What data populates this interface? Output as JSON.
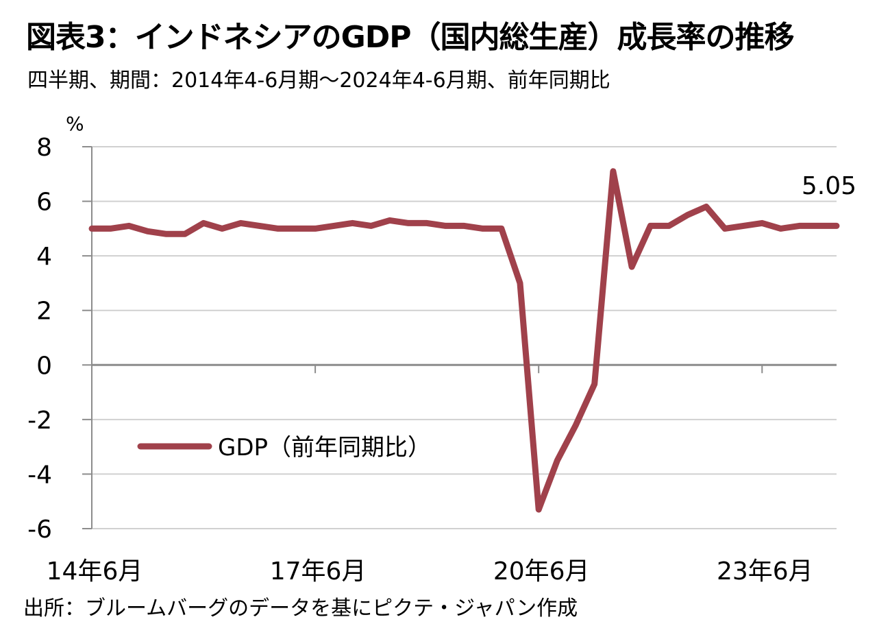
{
  "chart_data": {
    "type": "line",
    "title": "図表3：インドネシアのGDP（国内総生産）成長率の推移",
    "subtitle": "四半期、期間：2014年4-6月期～2024年4-6月期、前年同期比",
    "ylabel": "%",
    "ylim": [
      -6,
      8
    ],
    "yticks": [
      "8",
      "6",
      "4",
      "2",
      "0",
      "-2",
      "-4",
      "-6"
    ],
    "ytick_values": [
      8,
      6,
      4,
      2,
      0,
      -2,
      -4,
      -6
    ],
    "xtick_labels": [
      "14年6月",
      "17年6月",
      "20年6月",
      "23年6月"
    ],
    "xtick_index": [
      0,
      12,
      24,
      36
    ],
    "x": [
      "14年6月",
      "14年9月",
      "14年12月",
      "15年3月",
      "15年6月",
      "15年9月",
      "15年12月",
      "16年3月",
      "16年6月",
      "16年9月",
      "16年12月",
      "17年3月",
      "17年6月",
      "17年9月",
      "17年12月",
      "18年3月",
      "18年6月",
      "18年9月",
      "18年12月",
      "19年3月",
      "19年6月",
      "19年9月",
      "19年12月",
      "20年3月",
      "20年6月",
      "20年9月",
      "20年12月",
      "21年3月",
      "21年6月",
      "21年9月",
      "21年12月",
      "22年3月",
      "22年6月",
      "22年9月",
      "22年12月",
      "23年3月",
      "23年6月",
      "23年9月",
      "23年12月",
      "24年3月",
      "24年6月"
    ],
    "series": [
      {
        "name": "GDP（前年同期比）",
        "color": "#a0414b",
        "values": [
          5.0,
          5.0,
          5.1,
          4.9,
          4.8,
          4.8,
          5.2,
          5.0,
          5.2,
          5.1,
          5.0,
          5.0,
          5.0,
          5.1,
          5.2,
          5.1,
          5.3,
          5.2,
          5.2,
          5.1,
          5.1,
          5.0,
          5.0,
          3.0,
          -5.3,
          -3.5,
          -2.2,
          -0.7,
          7.1,
          3.6,
          5.1,
          5.1,
          5.5,
          5.8,
          5.0,
          5.1,
          5.2,
          5.0,
          5.1,
          5.1,
          5.1
        ]
      }
    ],
    "last_value_label": "5.05",
    "legend_position": "lower-left",
    "grid": true,
    "source": "出所：ブルームバーグのデータを基にピクテ・ジャパン作成"
  }
}
